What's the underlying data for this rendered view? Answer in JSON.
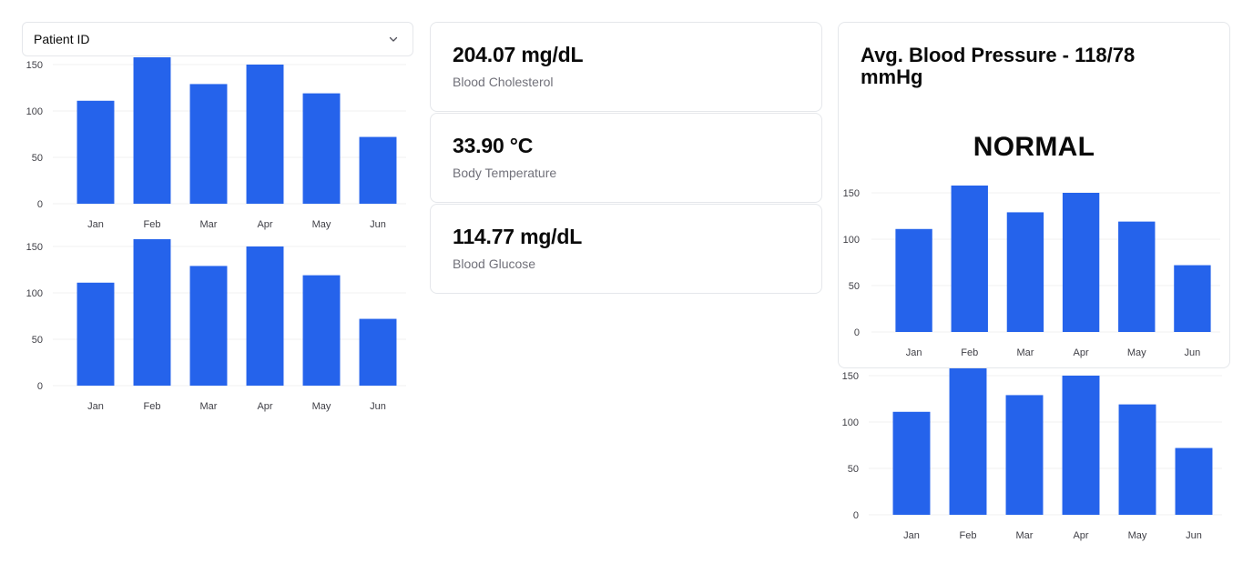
{
  "patient_select": {
    "placeholder": "Patient ID"
  },
  "metrics": [
    {
      "value": "204.07 mg/dL",
      "label": "Blood Cholesterol"
    },
    {
      "value": "33.90 °C",
      "label": "Body Temperature"
    },
    {
      "value": "114.77 mg/dL",
      "label": "Blood Glucose"
    }
  ],
  "blood_pressure": {
    "title": "Avg. Blood Pressure - 118/78 mmHg",
    "status": "NORMAL"
  },
  "colors": {
    "bar": "#2563eb",
    "border": "#e5e7eb",
    "muted": "#71717a"
  },
  "chart_data": [
    {
      "type": "bar",
      "categories": [
        "Jan",
        "Feb",
        "Mar",
        "Apr",
        "May",
        "Jun"
      ],
      "values": [
        111,
        158,
        129,
        150,
        119,
        72
      ],
      "ylim": [
        0,
        150
      ],
      "yticks": [
        0,
        50,
        100,
        150
      ],
      "grid": true
    },
    {
      "type": "bar",
      "categories": [
        "Jan",
        "Feb",
        "Mar",
        "Apr",
        "May",
        "Jun"
      ],
      "values": [
        111,
        158,
        129,
        150,
        119,
        72
      ],
      "ylim": [
        0,
        150
      ],
      "yticks": [
        0,
        50,
        100,
        150
      ],
      "grid": true
    },
    {
      "type": "bar",
      "categories": [
        "Jan",
        "Feb",
        "Mar",
        "Apr",
        "May",
        "Jun"
      ],
      "values": [
        111,
        158,
        129,
        150,
        119,
        72
      ],
      "ylim": [
        0,
        150
      ],
      "yticks": [
        0,
        50,
        100,
        150
      ],
      "grid": true
    },
    {
      "type": "bar",
      "categories": [
        "Jan",
        "Feb",
        "Mar",
        "Apr",
        "May",
        "Jun"
      ],
      "values": [
        111,
        158,
        129,
        150,
        119,
        72
      ],
      "ylim": [
        0,
        150
      ],
      "yticks": [
        0,
        50,
        100,
        150
      ],
      "grid": true
    }
  ]
}
